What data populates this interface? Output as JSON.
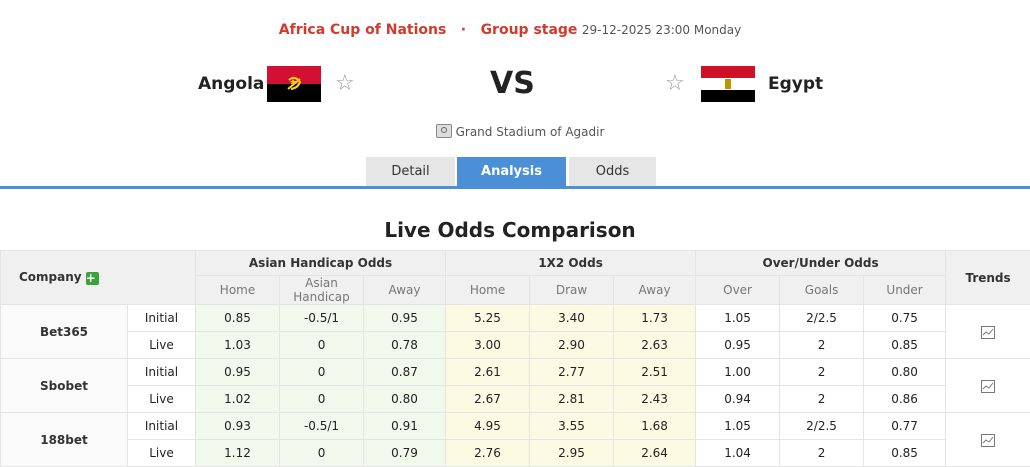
{
  "match": {
    "competition": "Africa Cup of Nations",
    "separator": "·",
    "stage": "Group stage",
    "datetime": "29-12-2025 23:00 Monday",
    "home_team": "Angola",
    "away_team": "Egypt",
    "vs": "VS",
    "stadium": "Grand Stadium of Agadir"
  },
  "tabs": [
    {
      "label": "Detail"
    },
    {
      "label": "Analysis"
    },
    {
      "label": "Odds"
    }
  ],
  "section_title": "Live Odds Comparison",
  "table": {
    "company_header": "Company",
    "groups": [
      "Asian Handicap Odds",
      "1X2 Odds",
      "Over/Under Odds"
    ],
    "trends_header": "Trends",
    "subheaders": [
      "Home",
      "Asian Handicap",
      "Away",
      "Home",
      "Draw",
      "Away",
      "Over",
      "Goals",
      "Under"
    ],
    "companies": [
      {
        "name": "Bet365",
        "rows": [
          {
            "type": "Initial",
            "values": [
              "0.85",
              "-0.5/1",
              "0.95",
              "5.25",
              "3.40",
              "1.73",
              "1.05",
              "2/2.5",
              "0.75"
            ]
          },
          {
            "type": "Live",
            "values": [
              "1.03",
              "0",
              "0.78",
              "3.00",
              "2.90",
              "2.63",
              "0.95",
              "2",
              "0.85"
            ]
          }
        ]
      },
      {
        "name": "Sbobet",
        "rows": [
          {
            "type": "Initial",
            "values": [
              "0.95",
              "0",
              "0.87",
              "2.61",
              "2.77",
              "2.51",
              "1.00",
              "2",
              "0.80"
            ]
          },
          {
            "type": "Live",
            "values": [
              "1.02",
              "0",
              "0.80",
              "2.67",
              "2.81",
              "2.43",
              "0.94",
              "2",
              "0.86"
            ]
          }
        ]
      },
      {
        "name": "188bet",
        "rows": [
          {
            "type": "Initial",
            "values": [
              "0.93",
              "-0.5/1",
              "0.91",
              "4.95",
              "3.55",
              "1.68",
              "1.05",
              "2/2.5",
              "0.77"
            ]
          },
          {
            "type": "Live",
            "values": [
              "1.12",
              "0",
              "0.79",
              "2.76",
              "2.95",
              "2.64",
              "1.04",
              "2",
              "0.85"
            ]
          }
        ]
      }
    ]
  },
  "colors": {
    "accent_blue": "#4b8fd6",
    "competition_red": "#d23a2b",
    "asian_bg": "#f1f8ec",
    "x2_bg": "#fbfbe3"
  },
  "icons": {
    "add": "plus-icon",
    "trend": "chart-icon",
    "favorite": "star-icon",
    "stadium": "stadium-icon"
  }
}
